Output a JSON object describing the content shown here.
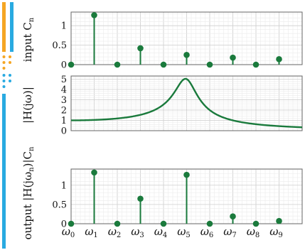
{
  "colors": {
    "stem": "#1a7a3c",
    "curve": "#1a7a3c",
    "grid": "#cfcfcf",
    "grid_minor": "#ebebeb",
    "frame": "#666666",
    "bar_orange": "#f5a623",
    "bar_blue": "#29aae1"
  },
  "chart_data": [
    {
      "type": "stem",
      "ylabel": "input C",
      "ylabel_sub": "n",
      "categories": [
        "ω0",
        "ω1",
        "ω2",
        "ω3",
        "ω4",
        "ω5",
        "ω6",
        "ω7",
        "ω8",
        "ω9"
      ],
      "values": [
        0,
        1.27,
        0,
        0.42,
        0,
        0.25,
        0,
        0.18,
        0,
        0.14
      ],
      "ylim": [
        0,
        1.35
      ],
      "yticks": [
        "0",
        "0.5",
        "1"
      ],
      "grid": true
    },
    {
      "type": "line",
      "ylabel": "|H(jω)|",
      "peak_value": 5,
      "peak_frequency": 5,
      "dc_value": 1,
      "end_value": 0.32,
      "ylim": [
        0,
        5.3
      ],
      "yticks": [
        "0",
        "1",
        "2",
        "3",
        "4",
        "5"
      ],
      "grid": true
    },
    {
      "type": "stem",
      "ylabel": "output |H(jω",
      "ylabel_mid_sub": "n",
      "ylabel_tail": ")|C",
      "ylabel_sub": "n",
      "categories": [
        "ω0",
        "ω1",
        "ω2",
        "ω3",
        "ω4",
        "ω5",
        "ω6",
        "ω7",
        "ω8",
        "ω9"
      ],
      "x_tick_symbol": "ω",
      "x_tick_subs": [
        "0",
        "1",
        "2",
        "3",
        "4",
        "5",
        "6",
        "7",
        "8",
        "9"
      ],
      "values": [
        0,
        1.33,
        0,
        0.65,
        0,
        1.27,
        0,
        0.19,
        0,
        0.07
      ],
      "ylim": [
        0,
        1.42
      ],
      "yticks": [
        "0",
        "0.5",
        "1"
      ],
      "grid": true
    }
  ]
}
